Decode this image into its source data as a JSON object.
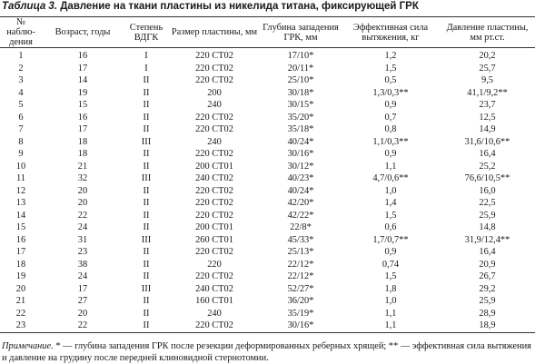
{
  "header": {
    "label": "Таблица 3.",
    "title": "Давление на ткани пластины из никелида титана, фиксирующей ГРК"
  },
  "table": {
    "columns": [
      "№ наблю-дения",
      "Возраст, годы",
      "Степень ВДГК",
      "Размер пластины, мм",
      "Глубина западения ГРК, мм",
      "Эффективная сила вытяжения, кг",
      "Давление пластины, мм рт.ст."
    ],
    "rows": [
      [
        "1",
        "16",
        "I",
        "220 СТ02",
        "17/10*",
        "1,2",
        "20,2"
      ],
      [
        "2",
        "17",
        "I",
        "220 СТ02",
        "20/11*",
        "1,5",
        "25,7"
      ],
      [
        "3",
        "14",
        "II",
        "220 СТ02",
        "25/10*",
        "0,5",
        "9,5"
      ],
      [
        "4",
        "19",
        "II",
        "200",
        "30/18*",
        "1,3/0,3**",
        "41,1/9,2**"
      ],
      [
        "5",
        "15",
        "II",
        "240",
        "30/15*",
        "0,9",
        "23,7"
      ],
      [
        "6",
        "16",
        "II",
        "220 СТ02",
        "35/20*",
        "0,7",
        "12,5"
      ],
      [
        "7",
        "17",
        "II",
        "220 СТ02",
        "35/18*",
        "0,8",
        "14,9"
      ],
      [
        "8",
        "18",
        "III",
        "240",
        "40/24*",
        "1,1/0,3**",
        "31,6/10,6**"
      ],
      [
        "9",
        "18",
        "II",
        "220 СТ02",
        "30/16*",
        "0,9",
        "16,4"
      ],
      [
        "10",
        "21",
        "II",
        "200 СТ01",
        "30/12*",
        "1,1",
        "25,2"
      ],
      [
        "11",
        "32",
        "III",
        "240 СТ02",
        "40/23*",
        "4,7/0,6**",
        "76,6/10,5**"
      ],
      [
        "12",
        "20",
        "II",
        "220 СТ02",
        "40/24*",
        "1,0",
        "16,0"
      ],
      [
        "13",
        "20",
        "II",
        "220 СТ02",
        "42/20*",
        "1,4",
        "22,5"
      ],
      [
        "14",
        "22",
        "II",
        "220 СТ02",
        "42/22*",
        "1,5",
        "25,9"
      ],
      [
        "15",
        "24",
        "II",
        "200 СТ01",
        "22/8*",
        "0,6",
        "14,8"
      ],
      [
        "16",
        "31",
        "III",
        "260 СТ01",
        "45/33*",
        "1,7/0,7**",
        "31,9/12,4**"
      ],
      [
        "17",
        "23",
        "II",
        "220 СТ02",
        "25/13*",
        "0,9",
        "16,4"
      ],
      [
        "18",
        "38",
        "II",
        "220",
        "22/12*",
        "0,74",
        "20,9"
      ],
      [
        "19",
        "24",
        "II",
        "220 СТ02",
        "22/12*",
        "1,5",
        "26,7"
      ],
      [
        "20",
        "17",
        "III",
        "240 СТ02",
        "52/27*",
        "1,8",
        "29,2"
      ],
      [
        "21",
        "27",
        "II",
        "160 СТ01",
        "36/20*",
        "1,0",
        "25,9"
      ],
      [
        "22",
        "20",
        "II",
        "240",
        "35/19*",
        "1,1",
        "28,9"
      ],
      [
        "23",
        "22",
        "II",
        "220 СТ02",
        "30/16*",
        "1,1",
        "18,9"
      ]
    ]
  },
  "note": {
    "label": "Примечание.",
    "text": "* — глубина западения ГРК после резекции деформированных реберных хрящей; ** — эффективная сила вытяжения и давление на грудину после передней клиновидной стернотомии."
  }
}
